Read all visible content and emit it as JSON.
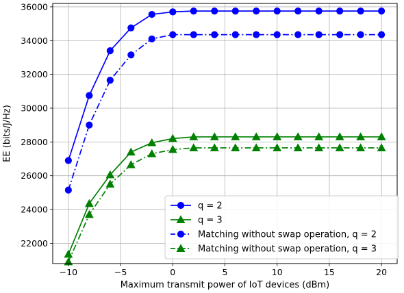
{
  "chart_data": {
    "type": "line",
    "title": "",
    "xlabel": "Maximum transmit power of IoT devices (dBm)",
    "ylabel": "EE (bits/J/Hz)",
    "xlim": [
      -11.5,
      21.5
    ],
    "ylim": [
      20800,
      36200
    ],
    "xticks": [
      -10,
      -5,
      0,
      5,
      10,
      15,
      20
    ],
    "xtick_labels": [
      "−10",
      "−5",
      "0",
      "5",
      "10",
      "15",
      "20"
    ],
    "yticks": [
      22000,
      24000,
      26000,
      28000,
      30000,
      32000,
      34000,
      36000
    ],
    "ytick_labels": [
      "22000",
      "24000",
      "26000",
      "28000",
      "30000",
      "32000",
      "34000",
      "36000"
    ],
    "grid": true,
    "legend_position": "lower-right",
    "x": [
      -10,
      -8,
      -6,
      -4,
      -2,
      0,
      2,
      4,
      6,
      8,
      10,
      12,
      14,
      16,
      18,
      20
    ],
    "series": [
      {
        "name": "q = 2",
        "color": "#0000ff",
        "marker": "circle",
        "line": "solid",
        "values": [
          26900,
          30750,
          33400,
          34750,
          35550,
          35700,
          35750,
          35750,
          35750,
          35750,
          35750,
          35750,
          35750,
          35750,
          35750,
          35750
        ]
      },
      {
        "name": "q = 3",
        "color": "#008000",
        "marker": "triangle",
        "line": "solid",
        "values": [
          21350,
          24350,
          26050,
          27400,
          27950,
          28200,
          28300,
          28300,
          28300,
          28300,
          28300,
          28300,
          28300,
          28300,
          28300,
          28300
        ]
      },
      {
        "name": "Matching without swap operation, q = 2",
        "color": "#0000ff",
        "marker": "circle",
        "line": "dashdot",
        "values": [
          25150,
          29000,
          31650,
          33150,
          34100,
          34350,
          34350,
          34350,
          34350,
          34350,
          34350,
          34350,
          34350,
          34350,
          34350,
          34350
        ]
      },
      {
        "name": "Matching without swap operation, q = 3",
        "color": "#008000",
        "marker": "triangle",
        "line": "dashdot",
        "values": [
          20900,
          23700,
          25500,
          26650,
          27300,
          27550,
          27650,
          27650,
          27650,
          27650,
          27650,
          27650,
          27650,
          27650,
          27650,
          27650
        ]
      }
    ]
  }
}
